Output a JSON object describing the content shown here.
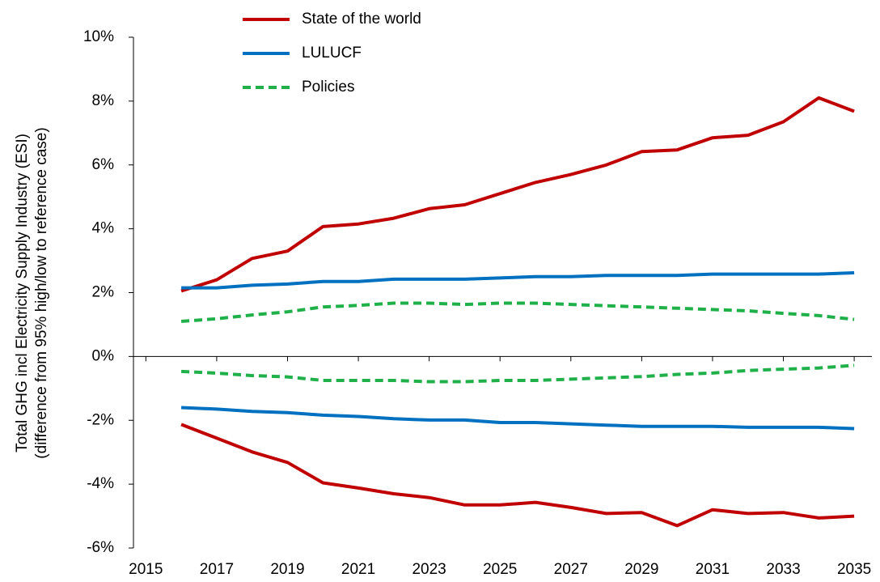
{
  "chart_data": {
    "type": "line",
    "ylabel": [
      "Total  GHG incl Electricity Supply Industry (ESI)",
      "(difference from 95% high/low to reference case)"
    ],
    "x": [
      2016,
      2017,
      2018,
      2019,
      2020,
      2021,
      2022,
      2023,
      2024,
      2025,
      2026,
      2027,
      2028,
      2029,
      2030,
      2031,
      2032,
      2033,
      2034,
      2035
    ],
    "xlim": [
      2014.65,
      2035.5
    ],
    "xticks": [
      2015,
      2017,
      2019,
      2021,
      2023,
      2025,
      2027,
      2029,
      2031,
      2033,
      2035
    ],
    "ylim": [
      -6,
      10
    ],
    "yticks": [
      {
        "value": -6,
        "label": "-6%"
      },
      {
        "value": -4,
        "label": "-4%"
      },
      {
        "value": -2,
        "label": "-2%"
      },
      {
        "value": 0,
        "label": "0%"
      },
      {
        "value": 2,
        "label": "2%"
      },
      {
        "value": 4,
        "label": "4%"
      },
      {
        "value": 6,
        "label": "6%"
      },
      {
        "value": 8,
        "label": "8%"
      },
      {
        "value": 10,
        "label": "10%"
      }
    ],
    "legend": "upper-left",
    "series": [
      {
        "name": "State of the world",
        "color": "#c00000",
        "linestyle": "solid",
        "values": [
          2.05,
          2.4,
          3.07,
          3.3,
          4.07,
          4.15,
          4.33,
          4.63,
          4.75,
          5.1,
          5.45,
          5.7,
          6.0,
          6.42,
          6.47,
          6.85,
          6.93,
          7.35,
          8.1,
          7.68
        ]
      },
      {
        "name": "LULUCF",
        "color": "#0070c0",
        "linestyle": "solid",
        "values": [
          2.15,
          2.15,
          2.23,
          2.27,
          2.35,
          2.35,
          2.42,
          2.42,
          2.42,
          2.46,
          2.5,
          2.5,
          2.54,
          2.54,
          2.54,
          2.58,
          2.58,
          2.58,
          2.58,
          2.62
        ]
      },
      {
        "name": "Policies",
        "color": "#1fb04a",
        "linestyle": "dashed",
        "values": [
          1.1,
          1.18,
          1.3,
          1.4,
          1.55,
          1.6,
          1.67,
          1.67,
          1.63,
          1.67,
          1.67,
          1.63,
          1.59,
          1.55,
          1.51,
          1.47,
          1.43,
          1.35,
          1.28,
          1.16
        ]
      },
      {
        "color": "#1fb04a",
        "linestyle": "dashed",
        "values": [
          -0.47,
          -0.52,
          -0.6,
          -0.64,
          -0.75,
          -0.75,
          -0.75,
          -0.79,
          -0.79,
          -0.75,
          -0.75,
          -0.71,
          -0.67,
          -0.63,
          -0.56,
          -0.52,
          -0.44,
          -0.4,
          -0.36,
          -0.28
        ]
      },
      {
        "color": "#0070c0",
        "linestyle": "solid",
        "values": [
          -1.6,
          -1.65,
          -1.72,
          -1.76,
          -1.84,
          -1.88,
          -1.95,
          -1.99,
          -1.99,
          -2.07,
          -2.07,
          -2.11,
          -2.15,
          -2.19,
          -2.19,
          -2.19,
          -2.22,
          -2.22,
          -2.22,
          -2.26
        ]
      },
      {
        "color": "#c00000",
        "linestyle": "solid",
        "values": [
          -2.13,
          -2.56,
          -2.99,
          -3.32,
          -3.96,
          -4.12,
          -4.3,
          -4.42,
          -4.65,
          -4.65,
          -4.57,
          -4.73,
          -4.92,
          -4.89,
          -5.3,
          -4.8,
          -4.92,
          -4.89,
          -5.06,
          -5.0
        ]
      }
    ]
  }
}
